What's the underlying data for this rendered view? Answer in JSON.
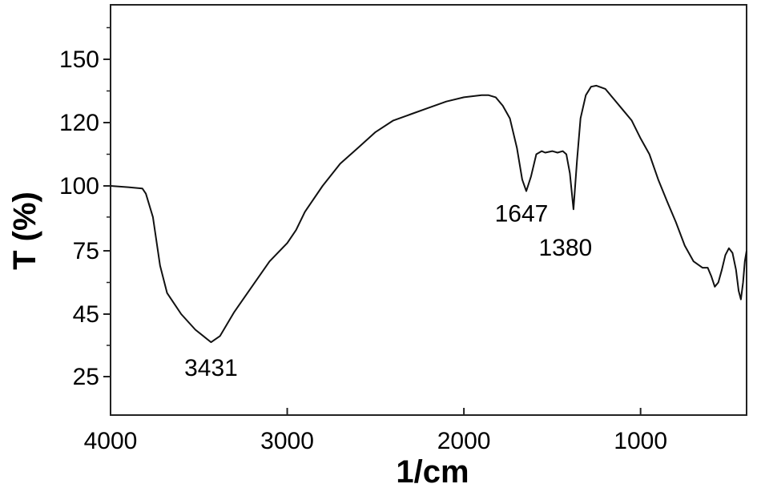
{
  "chart_data": {
    "type": "line",
    "title": "",
    "xlabel": "1/cm",
    "ylabel": "T (%)",
    "xlim": [
      4000,
      400
    ],
    "x_reversed": true,
    "x_ticks": [
      4000,
      3000,
      2000,
      1000
    ],
    "y_ticks": [
      25,
      45,
      75,
      100,
      120,
      150
    ],
    "y_tick_positions": [
      25,
      45,
      75,
      100,
      120,
      150
    ],
    "grid": false,
    "legend": "none",
    "line_color": "#111111",
    "annotations": [
      {
        "text": "3431",
        "x": 3431,
        "y": 36
      },
      {
        "text": "1647",
        "x": 1647,
        "y": 98
      },
      {
        "text": "1380",
        "x": 1380,
        "y": 91
      }
    ],
    "series": [
      {
        "points": [
          [
            4000,
            100
          ],
          [
            3900,
            99.5
          ],
          [
            3820,
            99
          ],
          [
            3800,
            97
          ],
          [
            3760,
            88
          ],
          [
            3720,
            68
          ],
          [
            3680,
            55
          ],
          [
            3600,
            45
          ],
          [
            3520,
            40
          ],
          [
            3431,
            36
          ],
          [
            3380,
            38
          ],
          [
            3300,
            46
          ],
          [
            3200,
            58
          ],
          [
            3100,
            70
          ],
          [
            3000,
            78
          ],
          [
            2950,
            83
          ],
          [
            2900,
            90
          ],
          [
            2800,
            100
          ],
          [
            2700,
            107
          ],
          [
            2600,
            112
          ],
          [
            2500,
            117
          ],
          [
            2400,
            121
          ],
          [
            2300,
            124
          ],
          [
            2200,
            127
          ],
          [
            2100,
            130
          ],
          [
            2000,
            132
          ],
          [
            1900,
            133
          ],
          [
            1860,
            133
          ],
          [
            1820,
            132
          ],
          [
            1780,
            128
          ],
          [
            1740,
            122
          ],
          [
            1700,
            112
          ],
          [
            1670,
            102
          ],
          [
            1647,
            98
          ],
          [
            1620,
            103
          ],
          [
            1590,
            110
          ],
          [
            1560,
            111
          ],
          [
            1540,
            110.5
          ],
          [
            1500,
            111
          ],
          [
            1470,
            110.5
          ],
          [
            1440,
            111
          ],
          [
            1420,
            110
          ],
          [
            1400,
            104
          ],
          [
            1380,
            91
          ],
          [
            1360,
            108
          ],
          [
            1340,
            122
          ],
          [
            1310,
            133
          ],
          [
            1280,
            137
          ],
          [
            1250,
            137.5
          ],
          [
            1200,
            136
          ],
          [
            1150,
            131
          ],
          [
            1100,
            126
          ],
          [
            1050,
            121
          ],
          [
            1000,
            115
          ],
          [
            950,
            110
          ],
          [
            900,
            102
          ],
          [
            850,
            94
          ],
          [
            800,
            86
          ],
          [
            750,
            77
          ],
          [
            700,
            70
          ],
          [
            650,
            67
          ],
          [
            620,
            67
          ],
          [
            600,
            63
          ],
          [
            580,
            58
          ],
          [
            560,
            60
          ],
          [
            540,
            66
          ],
          [
            520,
            73
          ],
          [
            500,
            76
          ],
          [
            480,
            74
          ],
          [
            460,
            66
          ],
          [
            445,
            56
          ],
          [
            432,
            52
          ],
          [
            420,
            60
          ],
          [
            410,
            70
          ],
          [
            400,
            75
          ]
        ]
      }
    ]
  }
}
